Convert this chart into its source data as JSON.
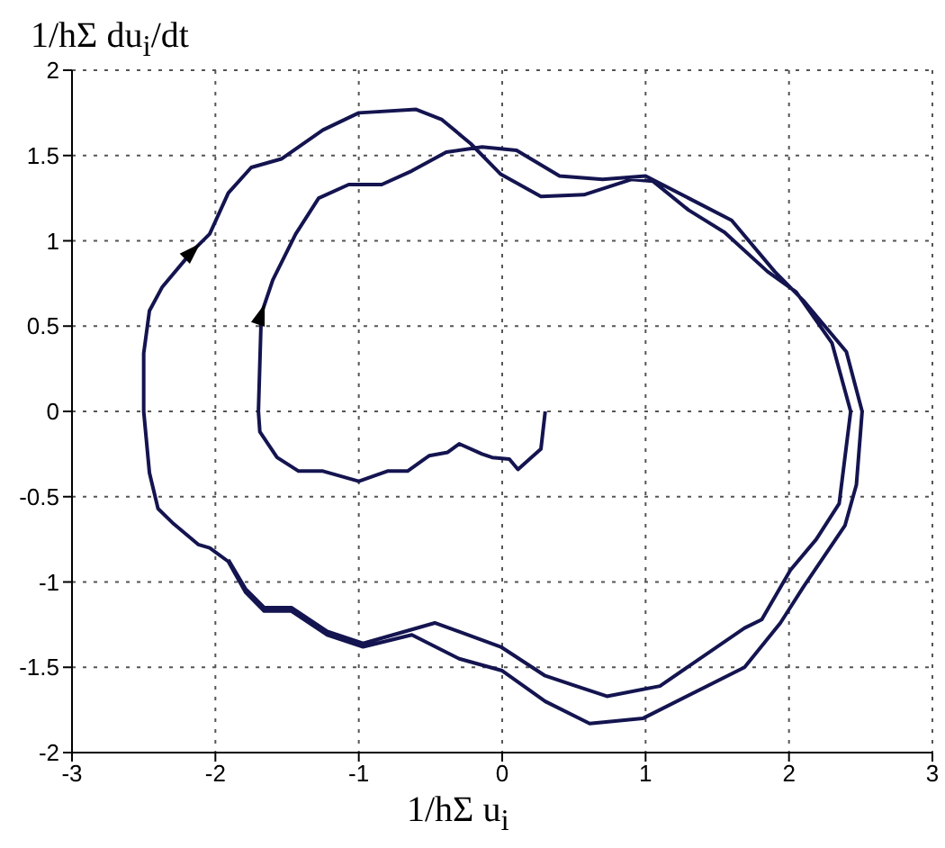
{
  "chart_data": {
    "type": "line",
    "xlabel": "1/hΣ u$_{i}$",
    "ylabel": "1/hΣ du$_{i}$/dt",
    "x": [
      0.3,
      0.27,
      0.11,
      0.05,
      -0.07,
      -0.14,
      -0.3,
      -0.38,
      -0.51,
      -0.66,
      -0.8,
      -1.0,
      -1.25,
      -1.42,
      -1.57,
      -1.69,
      -1.7,
      -1.68,
      -1.6,
      -1.44,
      -1.28,
      -1.07,
      -0.84,
      -0.63,
      -0.39,
      -0.14,
      0.1,
      0.4,
      0.7,
      1.0,
      1.3,
      1.6,
      1.9,
      2.1,
      2.4,
      2.51,
      2.47,
      2.39,
      2.1,
      1.94,
      1.69,
      0.98,
      0.61,
      0.3,
      0,
      -0.3,
      -0.63,
      -0.97,
      -1.22,
      -1.47,
      -1.66,
      -1.79,
      -1.91,
      -2.04,
      -2.12,
      -2.29,
      -2.4,
      -2.46,
      -2.5,
      -2.5,
      -2.46,
      -2.37,
      -2.16,
      -2.04,
      -1.91,
      -1.75,
      -1.54,
      -1.25,
      -1.0,
      -0.6,
      -0.42,
      -0.22,
      -0.01,
      0.27,
      0.57,
      0.9,
      1.05,
      1.3,
      1.55,
      1.85,
      2.05,
      2.3,
      2.43,
      2.35,
      2.19,
      2.01,
      1.81,
      1.69,
      1.1,
      0.73,
      0.3,
      -0.01,
      -0.47,
      -0.97,
      -1.22,
      -1.47,
      -1.66,
      -1.79,
      -1.91
    ],
    "values": [
      0,
      -0.22,
      -0.34,
      -0.28,
      -0.27,
      -0.25,
      -0.19,
      -0.24,
      -0.26,
      -0.35,
      -0.35,
      -0.41,
      -0.35,
      -0.35,
      -0.27,
      -0.12,
      0,
      0.57,
      0.77,
      1.04,
      1.25,
      1.33,
      1.33,
      1.41,
      1.52,
      1.55,
      1.53,
      1.38,
      1.36,
      1.38,
      1.25,
      1.12,
      0.82,
      0.65,
      0.35,
      0,
      -0.43,
      -0.67,
      -1.03,
      -1.24,
      -1.5,
      -1.8,
      -1.83,
      -1.7,
      -1.52,
      -1.45,
      -1.31,
      -1.38,
      -1.31,
      -1.17,
      -1.17,
      -1.06,
      -0.88,
      -0.8,
      -0.78,
      -0.66,
      -0.57,
      -0.36,
      0,
      0.34,
      0.59,
      0.73,
      0.94,
      1.04,
      1.28,
      1.43,
      1.48,
      1.65,
      1.75,
      1.77,
      1.71,
      1.57,
      1.39,
      1.26,
      1.27,
      1.36,
      1.35,
      1.18,
      1.05,
      0.82,
      0.7,
      0.4,
      0,
      -0.54,
      -0.75,
      -0.93,
      -1.22,
      -1.27,
      -1.61,
      -1.67,
      -1.55,
      -1.38,
      -1.24,
      -1.36,
      -1.29,
      -1.15,
      -1.15,
      -1.04,
      -0.87
    ],
    "color": "#141450",
    "xlim": [
      -3,
      3
    ],
    "xticks": [
      -3,
      -2,
      -1,
      0,
      1,
      2,
      3
    ],
    "ylim": [
      -2,
      2
    ],
    "yticks": [
      -2,
      -1.5,
      -1,
      -0.5,
      0,
      0.5,
      1,
      1.5,
      2
    ],
    "grid": true,
    "marker": "none",
    "line_style": "solid"
  }
}
